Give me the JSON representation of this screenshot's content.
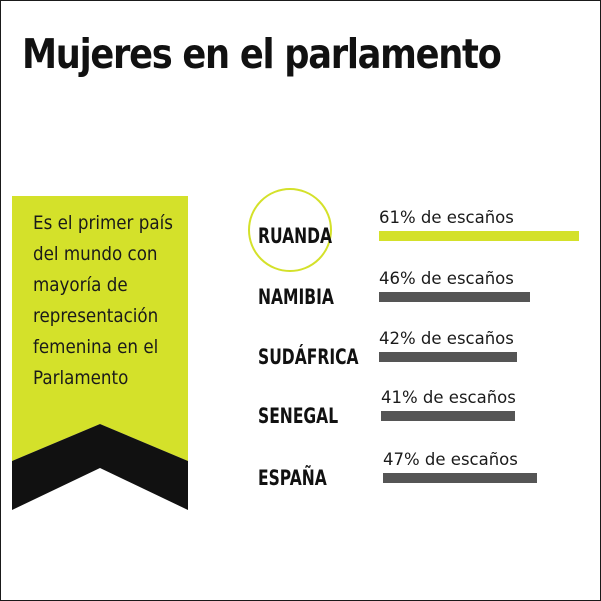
{
  "title": "Mujeres en el parlamento",
  "banner": {
    "lines": [
      "Es el primer país",
      "del mundo con",
      "mayoría de",
      "representación",
      "femenina en el",
      "Parlamento"
    ]
  },
  "colors": {
    "highlight": "#d4e12a",
    "bar": "#555555",
    "ribbon": "#111111"
  },
  "chart_data": {
    "type": "bar",
    "orientation": "horizontal",
    "title": "Mujeres en el parlamento",
    "value_suffix": "% de escaños",
    "categories": [
      "RUANDA",
      "NAMIBIA",
      "SUDÁFRICA",
      "SENEGAL",
      "ESPAÑA"
    ],
    "values": [
      61,
      46,
      42,
      41,
      47
    ],
    "labels": [
      "61% de escaños",
      "46% de escaños",
      "42% de escaños",
      "41% de escaños",
      "47% de escaños"
    ],
    "highlighted": "RUANDA"
  }
}
